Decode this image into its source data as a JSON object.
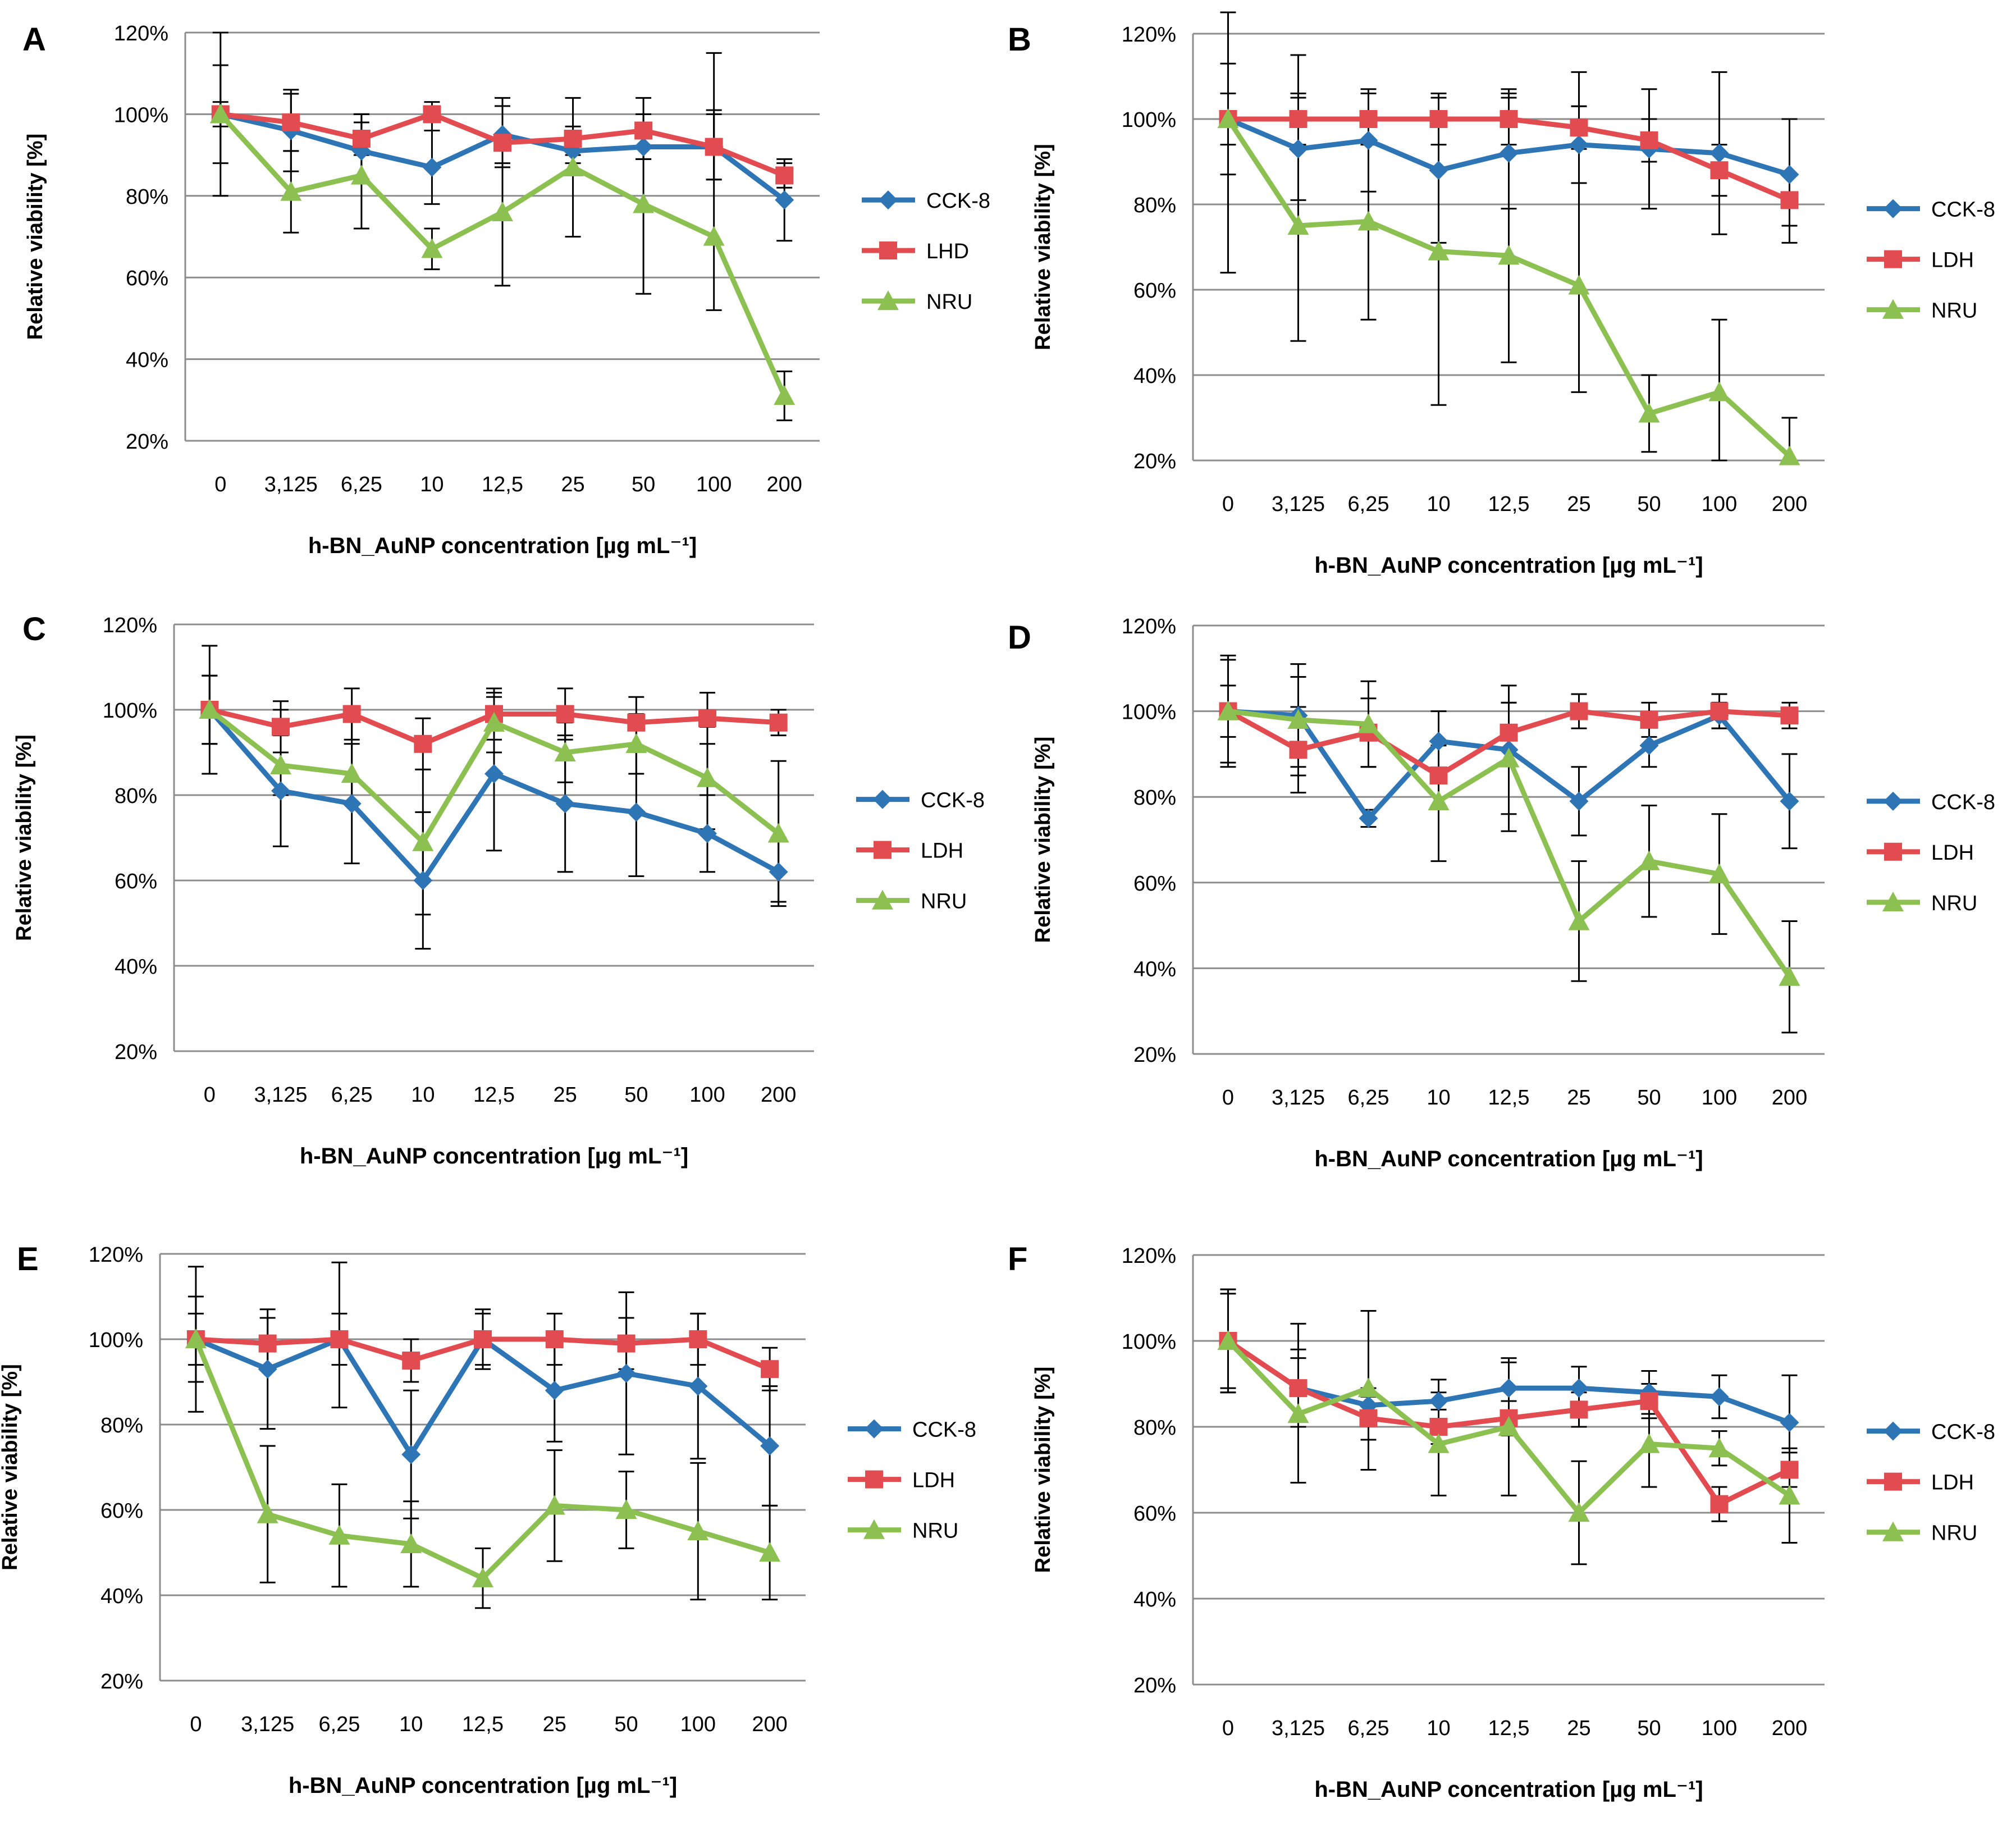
{
  "figure": {
    "colors": {
      "CCK-8": "#2e75b6",
      "LDH": "#e24b4f",
      "NRU": "#8cc152",
      "grid": "#8c8c8c",
      "errorbar": "#000000",
      "text": "#000000"
    },
    "series_markers": {
      "CCK-8": "diamond",
      "LDH": "square",
      "NRU": "triangle"
    }
  },
  "chart_data": [
    {
      "panel": "A",
      "type": "line",
      "categories": [
        "0",
        "3,125",
        "6,25",
        "10",
        "12,5",
        "25",
        "50",
        "100",
        "200"
      ],
      "ylim": [
        20,
        120
      ],
      "yticks": [
        "20%",
        "40%",
        "60%",
        "80%",
        "100%",
        "120%"
      ],
      "ylabel": "Relative viability [%]",
      "xlabel": "h-BN_AuNP concentration [µg mL⁻¹]",
      "series": [
        {
          "name": "CCK-8",
          "values": [
            100,
            96,
            91,
            87,
            95,
            91,
            92,
            92,
            79
          ],
          "err_low": [
            80,
            86,
            84,
            78,
            88,
            88,
            89,
            84,
            69
          ],
          "err_high": [
            120,
            106,
            100,
            96,
            102,
            95,
            95,
            100,
            89
          ]
        },
        {
          "name": "LHD",
          "values": [
            100,
            98,
            94,
            100,
            93,
            94,
            96,
            92,
            85
          ],
          "err_low": [
            97,
            91,
            90,
            96,
            87,
            90,
            89,
            84,
            82
          ],
          "err_high": [
            103,
            105,
            100,
            103,
            104,
            104,
            104,
            101,
            88
          ]
        },
        {
          "name": "NRU",
          "values": [
            100,
            81,
            85,
            67,
            76,
            87,
            78,
            70,
            31
          ],
          "err_low": [
            88,
            71,
            72,
            62,
            58,
            70,
            56,
            52,
            25
          ],
          "err_high": [
            112,
            91,
            98,
            72,
            94,
            97,
            100,
            115,
            37
          ]
        }
      ]
    },
    {
      "panel": "B",
      "type": "line",
      "categories": [
        "0",
        "3,125",
        "6,25",
        "10",
        "12,5",
        "25",
        "50",
        "100",
        "200"
      ],
      "ylim": [
        20,
        120
      ],
      "yticks": [
        "20%",
        "40%",
        "60%",
        "80%",
        "100%",
        "120%"
      ],
      "ylabel": "Relative viability [%]",
      "xlabel": "h-BN_AuNP concentration [µg mL⁻¹]",
      "series": [
        {
          "name": "CCK-8",
          "values": [
            100,
            93,
            95,
            88,
            92,
            94,
            93,
            92,
            87
          ],
          "err_low": [
            87,
            81,
            83,
            71,
            79,
            85,
            79,
            73,
            71
          ],
          "err_high": [
            113,
            105,
            107,
            105,
            105,
            103,
            107,
            111,
            100
          ]
        },
        {
          "name": "LDH",
          "values": [
            100,
            100,
            100,
            100,
            100,
            98,
            95,
            88,
            81
          ],
          "err_low": [
            94,
            94,
            94,
            94,
            94,
            93,
            90,
            82,
            75
          ],
          "err_high": [
            106,
            106,
            106,
            106,
            106,
            103,
            100,
            94,
            87
          ]
        },
        {
          "name": "NRU",
          "values": [
            100,
            75,
            76,
            69,
            68,
            61,
            31,
            36,
            21
          ],
          "err_low": [
            64,
            48,
            53,
            33,
            43,
            36,
            22,
            20,
            20
          ],
          "err_high": [
            125,
            115,
            100,
            105,
            107,
            111,
            40,
            53,
            30
          ]
        }
      ]
    },
    {
      "panel": "C",
      "type": "line",
      "categories": [
        "0",
        "3,125",
        "6,25",
        "10",
        "12,5",
        "25",
        "50",
        "100",
        "200"
      ],
      "ylim": [
        20,
        120
      ],
      "yticks": [
        "20%",
        "40%",
        "60%",
        "80%",
        "100%",
        "120%"
      ],
      "ylabel": "Relative viability [%]",
      "xlabel": "h-BN_AuNP concentration [µg mL⁻¹]",
      "series": [
        {
          "name": "CCK-8",
          "values": [
            100,
            81,
            78,
            60,
            85,
            78,
            76,
            71,
            62
          ],
          "err_low": [
            85,
            68,
            64,
            44,
            67,
            62,
            61,
            62,
            55
          ],
          "err_high": [
            115,
            94,
            92,
            76,
            103,
            94,
            91,
            80,
            70
          ]
        },
        {
          "name": "LDH",
          "values": [
            100,
            96,
            99,
            92,
            99,
            99,
            97,
            98,
            97
          ],
          "err_low": [
            92,
            90,
            93,
            86,
            93,
            93,
            91,
            92,
            94
          ],
          "err_high": [
            108,
            102,
            105,
            98,
            105,
            105,
            103,
            104,
            100
          ]
        },
        {
          "name": "NRU",
          "values": [
            100,
            87,
            85,
            69,
            97,
            90,
            92,
            84,
            71
          ],
          "err_low": [
            92,
            80,
            78,
            52,
            90,
            83,
            85,
            72,
            54
          ],
          "err_high": [
            108,
            100,
            98,
            86,
            104,
            97,
            99,
            96,
            88
          ]
        }
      ]
    },
    {
      "panel": "D",
      "type": "line",
      "categories": [
        "0",
        "3,125",
        "6,25",
        "10",
        "12,5",
        "25",
        "50",
        "100",
        "200"
      ],
      "ylim": [
        20,
        120
      ],
      "yticks": [
        "20%",
        "40%",
        "60%",
        "80%",
        "100%",
        "120%"
      ],
      "ylabel": "Relative viability [%]",
      "xlabel": "h-BN_AuNP concentration [µg mL⁻¹]",
      "series": [
        {
          "name": "CCK-8",
          "values": [
            100,
            99,
            75,
            93,
            91,
            79,
            92,
            99,
            79
          ],
          "err_low": [
            87,
            87,
            73,
            86,
            72,
            71,
            87,
            96,
            68
          ],
          "err_high": [
            113,
            111,
            77,
            100,
            106,
            87,
            97,
            102,
            90
          ]
        },
        {
          "name": "LDH",
          "values": [
            100,
            91,
            95,
            85,
            95,
            100,
            98,
            100,
            99
          ],
          "err_low": [
            94,
            81,
            87,
            78,
            88,
            96,
            94,
            96,
            96
          ],
          "err_high": [
            106,
            101,
            103,
            92,
            102,
            104,
            102,
            104,
            102
          ]
        },
        {
          "name": "NRU",
          "values": [
            100,
            98,
            97,
            79,
            89,
            51,
            65,
            62,
            38
          ],
          "err_low": [
            88,
            85,
            87,
            65,
            76,
            37,
            52,
            48,
            25
          ],
          "err_high": [
            112,
            108,
            107,
            92,
            102,
            65,
            78,
            76,
            51
          ]
        }
      ]
    },
    {
      "panel": "E",
      "type": "line",
      "categories": [
        "0",
        "3,125",
        "6,25",
        "10",
        "12,5",
        "25",
        "50",
        "100",
        "200"
      ],
      "ylim": [
        20,
        120
      ],
      "yticks": [
        "20%",
        "40%",
        "60%",
        "80%",
        "100%",
        "120%"
      ],
      "ylabel": "Relative viability [%]",
      "xlabel": "h-BN_AuNP concentration [µg mL⁻¹]",
      "series": [
        {
          "name": "CCK-8",
          "values": [
            100,
            93,
            100,
            73,
            100,
            88,
            92,
            89,
            75
          ],
          "err_low": [
            83,
            79,
            84,
            58,
            93,
            76,
            73,
            72,
            61
          ],
          "err_high": [
            117,
            107,
            118,
            88,
            107,
            100,
            111,
            106,
            89
          ]
        },
        {
          "name": "LDH",
          "values": [
            100,
            99,
            100,
            95,
            100,
            100,
            99,
            100,
            93
          ],
          "err_low": [
            94,
            93,
            94,
            90,
            94,
            94,
            93,
            94,
            88
          ],
          "err_high": [
            106,
            105,
            106,
            100,
            106,
            106,
            105,
            106,
            98
          ]
        },
        {
          "name": "NRU",
          "values": [
            100,
            59,
            54,
            52,
            44,
            61,
            60,
            55,
            50
          ],
          "err_low": [
            90,
            43,
            42,
            42,
            37,
            48,
            51,
            39,
            39
          ],
          "err_high": [
            110,
            75,
            66,
            62,
            51,
            74,
            69,
            71,
            61
          ]
        }
      ]
    },
    {
      "panel": "F",
      "type": "line",
      "categories": [
        "0",
        "3,125",
        "6,25",
        "10",
        "12,5",
        "25",
        "50",
        "100",
        "200"
      ],
      "ylim": [
        20,
        120
      ],
      "yticks": [
        "20%",
        "40%",
        "60%",
        "80%",
        "100%",
        "120%"
      ],
      "ylabel": "Relative viability [%]",
      "xlabel": "h-BN_AuNP concentration [µg mL⁻¹]",
      "series": [
        {
          "name": "CCK-8",
          "values": [
            100,
            89,
            85,
            86,
            89,
            89,
            88,
            87,
            81
          ],
          "err_low": [
            89,
            80,
            81,
            81,
            83,
            84,
            83,
            82,
            70
          ],
          "err_high": [
            111,
            98,
            89,
            91,
            95,
            94,
            93,
            92,
            92
          ]
        },
        {
          "name": "LDH",
          "values": [
            100,
            89,
            82,
            80,
            82,
            84,
            86,
            62,
            70
          ],
          "err_low": [
            88,
            82,
            77,
            76,
            78,
            80,
            82,
            58,
            66
          ],
          "err_high": [
            112,
            96,
            87,
            84,
            86,
            88,
            90,
            66,
            74
          ]
        },
        {
          "name": "NRU",
          "values": [
            100,
            83,
            89,
            76,
            80,
            60,
            76,
            75,
            64
          ],
          "err_low": [
            88,
            67,
            70,
            64,
            64,
            48,
            66,
            71,
            53
          ],
          "err_high": [
            112,
            104,
            107,
            88,
            96,
            72,
            86,
            79,
            75
          ]
        }
      ]
    }
  ]
}
